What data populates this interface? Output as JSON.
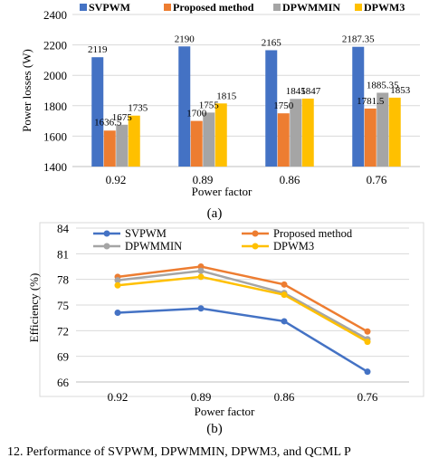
{
  "colors": {
    "SVPWM": "#4472c4",
    "Proposed method": "#ed7d31",
    "DPWMMIN": "#a5a5a5",
    "DPWM3": "#ffc000"
  },
  "chart_data": [
    {
      "type": "bar",
      "caption": "(a)",
      "xlabel": "Power factor",
      "ylabel": "Power losses (W)",
      "categories": [
        "0.92",
        "0.89",
        "0.86",
        "0.76"
      ],
      "ylim": [
        1400,
        2400
      ],
      "yticks": [
        "1400",
        "1600",
        "1800",
        "2000",
        "2200",
        "2400"
      ],
      "grid": "horizontal",
      "legend": "top",
      "series": [
        {
          "name": "SVPWM",
          "values": [
            2119,
            2190,
            2165,
            2187.35
          ],
          "labels": [
            "2119",
            "2190",
            "2165",
            "2187.35"
          ]
        },
        {
          "name": "Proposed method",
          "values": [
            1636.5,
            1700,
            1750,
            1781.5
          ],
          "labels": [
            "1636.5",
            "1700",
            "1750",
            "1781.5"
          ]
        },
        {
          "name": "DPWMMIN",
          "values": [
            1675,
            1755,
            1845,
            1885.35
          ],
          "labels": [
            "1675",
            "1755",
            "1845",
            "1885.35"
          ]
        },
        {
          "name": "DPWM3",
          "values": [
            1735,
            1815,
            1847,
            1853
          ],
          "labels": [
            "1735",
            "1815",
            "1847",
            "1853"
          ]
        }
      ]
    },
    {
      "type": "line",
      "caption": "(b)",
      "xlabel": "Power factor",
      "ylabel": "Efficiency (%)",
      "categories": [
        "0.92",
        "0.89",
        "0.86",
        "0.76"
      ],
      "ylim": [
        66,
        84
      ],
      "yticks": [
        "66",
        "69",
        "72",
        "75",
        "78",
        "81",
        "84"
      ],
      "grid": "horizontal",
      "legend": "top",
      "series": [
        {
          "name": "SVPWM",
          "values": [
            74.1,
            74.6,
            73.1,
            67.2
          ]
        },
        {
          "name": "Proposed method",
          "values": [
            78.3,
            79.5,
            77.4,
            71.9
          ]
        },
        {
          "name": "DPWMMIN",
          "values": [
            77.9,
            79.0,
            76.4,
            71.0
          ]
        },
        {
          "name": "DPWM3",
          "values": [
            77.3,
            78.3,
            76.2,
            70.7
          ]
        }
      ]
    }
  ],
  "footer_caption": "12.  Performance of SVPWM, DPWMMIN, DPWM3, and QCML P"
}
